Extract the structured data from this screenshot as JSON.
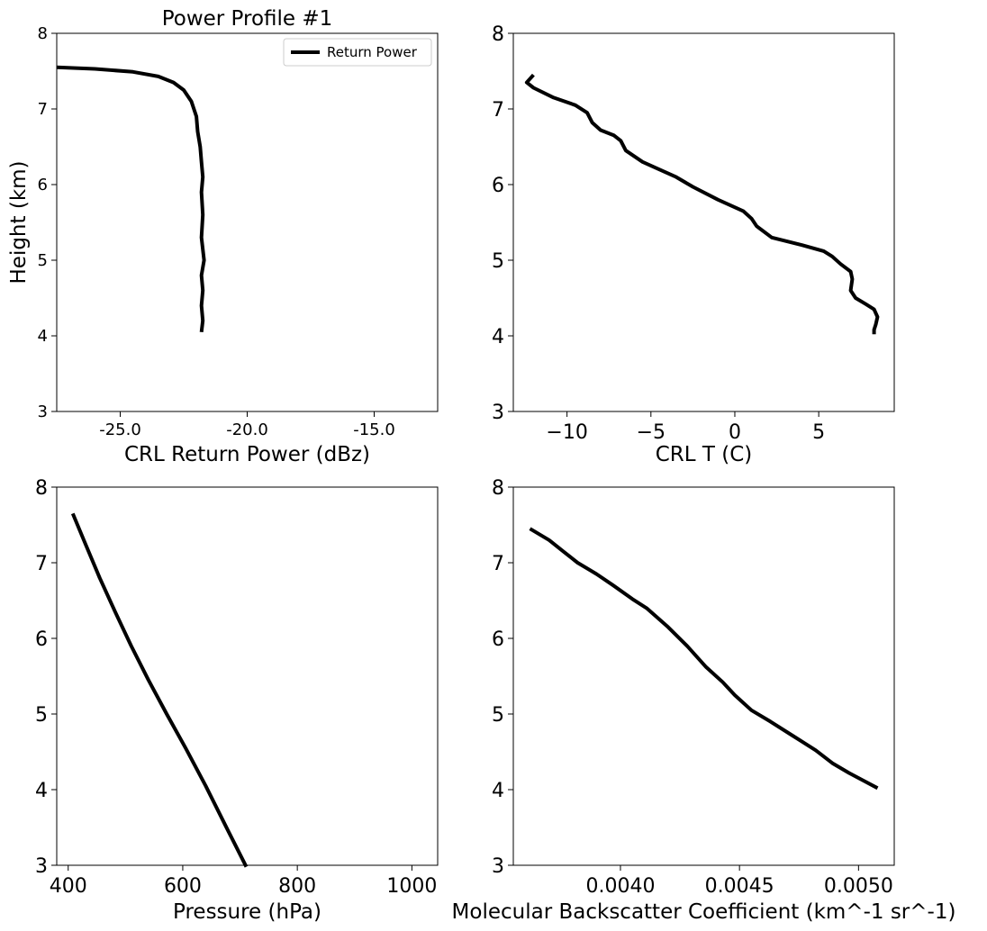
{
  "chart_data": [
    {
      "type": "line",
      "title": "Power Profile #1",
      "xlabel": "CRL Return Power (dBz)",
      "ylabel": "Height (km)",
      "xlim": [
        -27.5,
        -12.5
      ],
      "ylim": [
        3,
        8
      ],
      "xticks": [
        -25.0,
        -20.0,
        -15.0
      ],
      "xtick_labels": [
        "-25.0",
        "-20.0",
        "-15.0"
      ],
      "yticks": [
        3,
        4,
        5,
        6,
        7,
        8
      ],
      "ytick_labels": [
        "3",
        "4",
        "5",
        "6",
        "7",
        "8"
      ],
      "legend": {
        "position": "top-right",
        "entries": [
          "Return Power"
        ]
      },
      "series": [
        {
          "name": "Return Power",
          "color": "#000000",
          "x": [
            -27.5,
            -26.0,
            -24.5,
            -23.5,
            -22.9,
            -22.5,
            -22.2,
            -22.0,
            -21.95,
            -21.85,
            -21.8,
            -21.75,
            -21.8,
            -21.75,
            -21.8,
            -21.7,
            -21.8,
            -21.75,
            -21.8,
            -21.75,
            -21.8
          ],
          "y": [
            7.55,
            7.53,
            7.49,
            7.43,
            7.35,
            7.25,
            7.1,
            6.9,
            6.7,
            6.5,
            6.3,
            6.1,
            5.9,
            5.6,
            5.3,
            5.0,
            4.8,
            4.6,
            4.4,
            4.2,
            4.05
          ]
        }
      ]
    },
    {
      "type": "line",
      "xlabel": "CRL T (C)",
      "ylabel": "",
      "xlim": [
        -13.2,
        9.5
      ],
      "ylim": [
        3,
        8
      ],
      "xticks": [
        -10,
        -5,
        0,
        5
      ],
      "xtick_labels": [
        "−10",
        "−5",
        "0",
        "5"
      ],
      "yticks": [
        3,
        4,
        5,
        6,
        7,
        8
      ],
      "ytick_labels": [
        "3",
        "4",
        "5",
        "6",
        "7",
        "8"
      ],
      "series": [
        {
          "color": "#000000",
          "x": [
            -12.0,
            -12.4,
            -12.0,
            -10.8,
            -9.5,
            -8.8,
            -8.5,
            -8.0,
            -7.2,
            -6.8,
            -6.5,
            -5.5,
            -4.5,
            -3.5,
            -2.5,
            -1.0,
            0.5,
            1.0,
            1.3,
            2.2,
            4.0,
            5.3,
            5.8,
            6.3,
            6.9,
            7.0,
            6.9,
            7.2,
            7.8,
            8.3,
            8.5,
            8.4,
            8.3,
            8.3
          ],
          "y": [
            7.45,
            7.35,
            7.28,
            7.15,
            7.05,
            6.95,
            6.82,
            6.72,
            6.65,
            6.58,
            6.45,
            6.3,
            6.2,
            6.1,
            5.97,
            5.8,
            5.65,
            5.55,
            5.45,
            5.3,
            5.2,
            5.12,
            5.05,
            4.95,
            4.85,
            4.75,
            4.6,
            4.5,
            4.42,
            4.35,
            4.25,
            4.15,
            4.08,
            4.02
          ]
        }
      ]
    },
    {
      "type": "line",
      "xlabel": "Pressure (hPa)",
      "ylabel": "",
      "xlim": [
        380,
        1045
      ],
      "ylim": [
        3,
        8
      ],
      "xticks": [
        400,
        600,
        800,
        1000
      ],
      "xtick_labels": [
        "400",
        "600",
        "800",
        "1000"
      ],
      "yticks": [
        3,
        4,
        5,
        6,
        7,
        8
      ],
      "ytick_labels": [
        "3",
        "4",
        "5",
        "6",
        "7",
        "8"
      ],
      "series": [
        {
          "color": "#000000",
          "x": [
            408,
            430,
            455,
            482,
            510,
            540,
            572,
            605,
            640,
            675,
            711
          ],
          "y": [
            7.65,
            7.25,
            6.8,
            6.35,
            5.9,
            5.45,
            5.0,
            4.55,
            4.05,
            3.52,
            2.98
          ]
        }
      ]
    },
    {
      "type": "line",
      "xlabel": "Molecular Backscatter Coefficient (km^-1 sr^-1)",
      "ylabel": "",
      "xlim": [
        0.00355,
        0.00515
      ],
      "ylim": [
        3,
        8
      ],
      "xticks": [
        0.004,
        0.0045,
        0.005
      ],
      "xtick_labels": [
        "0.0040",
        "0.0045",
        "0.0050"
      ],
      "yticks": [
        3,
        4,
        5,
        6,
        7,
        8
      ],
      "ytick_labels": [
        "3",
        "4",
        "5",
        "6",
        "7",
        "8"
      ],
      "series": [
        {
          "color": "#000000",
          "x": [
            0.00362,
            0.0037,
            0.00376,
            0.00382,
            0.0039,
            0.00397,
            0.00405,
            0.00411,
            0.0042,
            0.00428,
            0.00436,
            0.00443,
            0.00448,
            0.00455,
            0.00463,
            0.00472,
            0.00482,
            0.00489,
            0.00496,
            0.00502,
            0.00508
          ],
          "y": [
            7.45,
            7.3,
            7.15,
            7.0,
            6.85,
            6.7,
            6.52,
            6.4,
            6.15,
            5.9,
            5.62,
            5.42,
            5.25,
            5.05,
            4.9,
            4.72,
            4.52,
            4.35,
            4.22,
            4.12,
            4.02
          ]
        }
      ]
    }
  ]
}
